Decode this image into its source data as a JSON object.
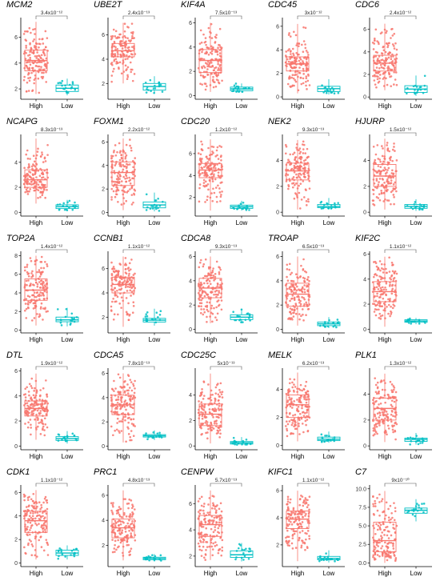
{
  "colors": {
    "high": "#F8766D",
    "low": "#00BFC4",
    "axis": "#000000",
    "bracket": "#555555"
  },
  "chart_data": [
    {
      "type": "box",
      "title": "MCM2",
      "p_value": "3.4x10⁻¹²",
      "categories": [
        "High",
        "Low"
      ],
      "ylim": [
        1.2,
        7.4
      ],
      "yticks": [
        2,
        4,
        6
      ],
      "high": {
        "min": 1.6,
        "q1": 3.4,
        "median": 4.2,
        "q3": 5.0,
        "max": 7.2
      },
      "low": {
        "min": 1.5,
        "q1": 1.8,
        "median": 2.05,
        "q3": 2.3,
        "max": 2.8
      }
    },
    {
      "type": "box",
      "title": "UBE2T",
      "p_value": "2.4x10⁻¹³",
      "categories": [
        "High",
        "Low"
      ],
      "ylim": [
        0.7,
        7.3
      ],
      "yticks": [
        2,
        4,
        6
      ],
      "high": {
        "min": 2.0,
        "q1": 4.2,
        "median": 4.7,
        "q3": 5.3,
        "max": 7.0
      },
      "low": {
        "min": 1.2,
        "q1": 1.45,
        "median": 1.75,
        "q3": 2.0,
        "max": 2.6
      }
    },
    {
      "type": "box",
      "title": "KIF4A",
      "p_value": "7.5x10⁻¹³",
      "categories": [
        "High",
        "Low"
      ],
      "ylim": [
        -0.3,
        6.3
      ],
      "yticks": [
        0,
        2,
        4,
        6
      ],
      "high": {
        "min": 0.3,
        "q1": 1.9,
        "median": 2.9,
        "q3": 3.8,
        "max": 6.0
      },
      "low": {
        "min": 0.25,
        "q1": 0.4,
        "median": 0.55,
        "q3": 0.7,
        "max": 1.0
      }
    },
    {
      "type": "box",
      "title": "CDC45",
      "p_value": "3x10⁻¹²",
      "categories": [
        "High",
        "Low"
      ],
      "ylim": [
        -0.2,
        6.6
      ],
      "yticks": [
        0,
        2,
        4,
        6
      ],
      "high": {
        "min": 0.3,
        "q1": 2.2,
        "median": 2.8,
        "q3": 3.4,
        "max": 6.2
      },
      "low": {
        "min": 0.2,
        "q1": 0.45,
        "median": 0.7,
        "q3": 0.9,
        "max": 1.5
      }
    },
    {
      "type": "box",
      "title": "CDC6",
      "p_value": "2.4x10⁻¹²",
      "categories": [
        "High",
        "Low"
      ],
      "ylim": [
        -0.2,
        6.9
      ],
      "yticks": [
        0,
        2,
        4,
        6
      ],
      "high": {
        "min": 0.6,
        "q1": 2.3,
        "median": 3.0,
        "q3": 3.7,
        "max": 6.5
      },
      "low": {
        "min": 0.1,
        "q1": 0.4,
        "median": 0.7,
        "q3": 1.0,
        "max": 1.9
      }
    },
    {
      "type": "box",
      "title": "NCAPG",
      "p_value": "8.3x10⁻¹³",
      "categories": [
        "High",
        "Low"
      ],
      "ylim": [
        -0.3,
        6.1
      ],
      "yticks": [
        0,
        2,
        4
      ],
      "high": {
        "min": 0.7,
        "q1": 2.0,
        "median": 2.6,
        "q3": 3.4,
        "max": 5.9
      },
      "low": {
        "min": 0.1,
        "q1": 0.3,
        "median": 0.45,
        "q3": 0.6,
        "max": 1.0
      }
    },
    {
      "type": "box",
      "title": "FOXM1",
      "p_value": "2.2x10⁻¹²",
      "categories": [
        "High",
        "Low"
      ],
      "ylim": [
        -0.3,
        6.5
      ],
      "yticks": [
        0,
        2,
        4,
        6
      ],
      "high": {
        "min": 0.2,
        "q1": 2.3,
        "median": 3.4,
        "q3": 4.3,
        "max": 6.3
      },
      "low": {
        "min": 0.1,
        "q1": 0.4,
        "median": 0.65,
        "q3": 0.9,
        "max": 1.7
      }
    },
    {
      "type": "box",
      "title": "CDC20",
      "p_value": "1.2x10⁻¹²",
      "categories": [
        "High",
        "Low"
      ],
      "ylim": [
        0.3,
        7.6
      ],
      "yticks": [
        2,
        4,
        6
      ],
      "high": {
        "min": 0.8,
        "q1": 3.8,
        "median": 4.5,
        "q3": 5.1,
        "max": 7.3
      },
      "low": {
        "min": 0.8,
        "q1": 1.0,
        "median": 1.15,
        "q3": 1.3,
        "max": 1.7
      }
    },
    {
      "type": "box",
      "title": "NEK2",
      "p_value": "9.3x10⁻¹³",
      "categories": [
        "High",
        "Low"
      ],
      "ylim": [
        -0.3,
        5.9
      ],
      "yticks": [
        0,
        2,
        4
      ],
      "high": {
        "min": 0.2,
        "q1": 2.5,
        "median": 3.2,
        "q3": 3.8,
        "max": 5.6
      },
      "low": {
        "min": 0.2,
        "q1": 0.35,
        "median": 0.45,
        "q3": 0.6,
        "max": 1.1
      }
    },
    {
      "type": "box",
      "title": "HJURP",
      "p_value": "1.5x10⁻¹²",
      "categories": [
        "High",
        "Low"
      ],
      "ylim": [
        -0.3,
        5.9
      ],
      "yticks": [
        0,
        2,
        4
      ],
      "high": {
        "min": 0.2,
        "q1": 2.0,
        "median": 2.8,
        "q3": 3.7,
        "max": 5.7
      },
      "low": {
        "min": 0.1,
        "q1": 0.3,
        "median": 0.45,
        "q3": 0.6,
        "max": 1.0
      }
    },
    {
      "type": "box",
      "title": "TOP2A",
      "p_value": "1.4x10⁻¹²",
      "categories": [
        "High",
        "Low"
      ],
      "ylim": [
        -0.3,
        8.3
      ],
      "yticks": [
        0,
        2,
        4,
        6,
        8
      ],
      "high": {
        "min": 0.5,
        "q1": 3.2,
        "median": 4.3,
        "q3": 5.5,
        "max": 8.0
      },
      "low": {
        "min": 0.4,
        "q1": 0.9,
        "median": 1.1,
        "q3": 1.4,
        "max": 2.4
      }
    },
    {
      "type": "box",
      "title": "CCNB1",
      "p_value": "1.1x10⁻¹²",
      "categories": [
        "High",
        "Low"
      ],
      "ylim": [
        0.7,
        7.3
      ],
      "yticks": [
        2,
        4,
        6
      ],
      "high": {
        "min": 1.2,
        "q1": 4.0,
        "median": 4.7,
        "q3": 5.3,
        "max": 7.0
      },
      "low": {
        "min": 1.3,
        "q1": 1.6,
        "median": 1.75,
        "q3": 1.9,
        "max": 2.7
      }
    },
    {
      "type": "box",
      "title": "CDCA8",
      "p_value": "9.3x10⁻¹³",
      "categories": [
        "High",
        "Low"
      ],
      "ylim": [
        -0.3,
        6.3
      ],
      "yticks": [
        0,
        2,
        4,
        6
      ],
      "high": {
        "min": 0.5,
        "q1": 2.6,
        "median": 3.4,
        "q3": 4.2,
        "max": 6.0
      },
      "low": {
        "min": 0.5,
        "q1": 0.8,
        "median": 1.0,
        "q3": 1.2,
        "max": 1.7
      }
    },
    {
      "type": "box",
      "title": "TROAP",
      "p_value": "6.5x10⁻¹³",
      "categories": [
        "High",
        "Low"
      ],
      "ylim": [
        -0.3,
        6.3
      ],
      "yticks": [
        0,
        2,
        4,
        6
      ],
      "high": {
        "min": 0.3,
        "q1": 1.9,
        "median": 2.9,
        "q3": 3.8,
        "max": 6.0
      },
      "low": {
        "min": 0.1,
        "q1": 0.3,
        "median": 0.45,
        "q3": 0.6,
        "max": 1.0
      }
    },
    {
      "type": "box",
      "title": "KIF2C",
      "p_value": "1.1x10⁻¹²",
      "categories": [
        "High",
        "Low"
      ],
      "ylim": [
        -0.3,
        6.1
      ],
      "yticks": [
        0,
        2,
        4,
        6
      ],
      "high": {
        "min": 0.2,
        "q1": 2.2,
        "median": 3.0,
        "q3": 3.8,
        "max": 5.8
      },
      "low": {
        "min": 0.4,
        "q1": 0.55,
        "median": 0.65,
        "q3": 0.75,
        "max": 0.9
      }
    },
    {
      "type": "box",
      "title": "DTL",
      "p_value": "1.9x10⁻¹²",
      "categories": [
        "High",
        "Low"
      ],
      "ylim": [
        -0.3,
        6.1
      ],
      "yticks": [
        0,
        2,
        4,
        6
      ],
      "high": {
        "min": 0.5,
        "q1": 2.4,
        "median": 3.0,
        "q3": 3.6,
        "max": 5.8
      },
      "low": {
        "min": 0.2,
        "q1": 0.45,
        "median": 0.6,
        "q3": 0.75,
        "max": 1.2
      }
    },
    {
      "type": "box",
      "title": "CDCA5",
      "p_value": "7.8x10⁻¹³",
      "categories": [
        "High",
        "Low"
      ],
      "ylim": [
        -0.3,
        6.3
      ],
      "yticks": [
        0,
        2,
        4,
        6
      ],
      "high": {
        "min": 0.3,
        "q1": 2.6,
        "median": 3.4,
        "q3": 4.2,
        "max": 6.0
      },
      "low": {
        "min": 0.5,
        "q1": 0.75,
        "median": 0.85,
        "q3": 0.95,
        "max": 1.3
      }
    },
    {
      "type": "box",
      "title": "CDC25C",
      "p_value": "5x10⁻¹³",
      "categories": [
        "High",
        "Low"
      ],
      "ylim": [
        -0.3,
        6.0
      ],
      "yticks": [
        0,
        2,
        4
      ],
      "high": {
        "min": 0.2,
        "q1": 1.6,
        "median": 2.5,
        "q3": 3.3,
        "max": 5.7
      },
      "low": {
        "min": 0.05,
        "q1": 0.15,
        "median": 0.25,
        "q3": 0.35,
        "max": 0.7
      }
    },
    {
      "type": "box",
      "title": "MELK",
      "p_value": "6.2x10⁻¹³",
      "categories": [
        "High",
        "Low"
      ],
      "ylim": [
        -0.3,
        5.4
      ],
      "yticks": [
        0,
        2,
        4
      ],
      "high": {
        "min": 0.3,
        "q1": 2.0,
        "median": 2.9,
        "q3": 3.6,
        "max": 5.2
      },
      "low": {
        "min": 0.2,
        "q1": 0.35,
        "median": 0.45,
        "q3": 0.6,
        "max": 1.0
      }
    },
    {
      "type": "box",
      "title": "PLK1",
      "p_value": "1.3x10⁻¹²",
      "categories": [
        "High",
        "Low"
      ],
      "ylim": [
        -0.3,
        5.9
      ],
      "yticks": [
        0,
        2,
        4
      ],
      "high": {
        "min": 0.3,
        "q1": 2.0,
        "median": 2.9,
        "q3": 3.7,
        "max": 5.6
      },
      "low": {
        "min": 0.1,
        "q1": 0.35,
        "median": 0.5,
        "q3": 0.6,
        "max": 1.0
      }
    },
    {
      "type": "box",
      "title": "CDK1",
      "p_value": "1.1x10⁻¹²",
      "categories": [
        "High",
        "Low"
      ],
      "ylim": [
        -0.3,
        6.5
      ],
      "yticks": [
        0,
        2,
        4,
        6
      ],
      "high": {
        "min": 0.3,
        "q1": 2.6,
        "median": 3.6,
        "q3": 4.4,
        "max": 6.2
      },
      "low": {
        "min": 0.3,
        "q1": 0.65,
        "median": 0.85,
        "q3": 1.1,
        "max": 1.5
      }
    },
    {
      "type": "box",
      "title": "PRC1",
      "p_value": "4.8x10⁻¹³",
      "categories": [
        "High",
        "Low"
      ],
      "ylim": [
        0.3,
        6.7
      ],
      "yticks": [
        2,
        4,
        6
      ],
      "high": {
        "min": 0.8,
        "q1": 2.6,
        "median": 3.4,
        "q3": 4.1,
        "max": 6.4
      },
      "low": {
        "min": 0.7,
        "q1": 0.85,
        "median": 0.95,
        "q3": 1.05,
        "max": 1.3
      }
    },
    {
      "type": "box",
      "title": "CENPW",
      "p_value": "5.7x10⁻¹³",
      "categories": [
        "High",
        "Low"
      ],
      "ylim": [
        1.2,
        7.3
      ],
      "yticks": [
        2,
        4,
        6
      ],
      "high": {
        "min": 1.7,
        "q1": 3.5,
        "median": 4.4,
        "q3": 5.1,
        "max": 7.0
      },
      "low": {
        "min": 1.6,
        "q1": 1.9,
        "median": 2.1,
        "q3": 2.4,
        "max": 3.0
      }
    },
    {
      "type": "box",
      "title": "KIFC1",
      "p_value": "1.1x10⁻¹²",
      "categories": [
        "High",
        "Low"
      ],
      "ylim": [
        0.4,
        6.3
      ],
      "yticks": [
        2,
        4,
        6
      ],
      "high": {
        "min": 0.8,
        "q1": 3.2,
        "median": 3.9,
        "q3": 4.5,
        "max": 6.0
      },
      "low": {
        "min": 0.7,
        "q1": 0.9,
        "median": 1.0,
        "q3": 1.15,
        "max": 1.6
      }
    },
    {
      "type": "box",
      "title": "C7",
      "p_value": "9x10⁻¹⁰",
      "categories": [
        "High",
        "Low"
      ],
      "ylim": [
        -0.5,
        10.3
      ],
      "yticks": [
        0.0,
        2.5,
        5.0,
        7.5,
        10.0
      ],
      "ytick_labels": [
        "0.0",
        "2.5",
        "5.0",
        "7.5",
        "10.0"
      ],
      "high": {
        "min": 0.0,
        "q1": 1.5,
        "median": 3.0,
        "q3": 5.5,
        "max": 9.7
      },
      "low": {
        "min": 5.6,
        "q1": 6.7,
        "median": 7.1,
        "q3": 7.4,
        "max": 8.6
      }
    }
  ]
}
